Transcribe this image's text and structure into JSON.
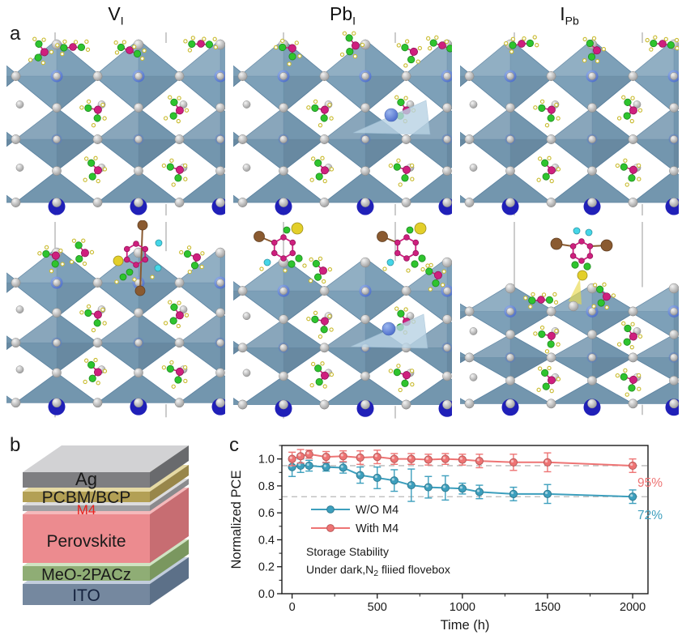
{
  "panels": {
    "a": "a",
    "b": "b",
    "c": "c"
  },
  "panel_a": {
    "column_labels": [
      {
        "main": "V",
        "sub": "I"
      },
      {
        "main": "Pb",
        "sub": "I"
      },
      {
        "main": "I",
        "sub": "Pb"
      }
    ]
  },
  "panel_b": {
    "layers": [
      {
        "name": "Ag",
        "label_color": "#1a1a1a",
        "front": "#7e7e81",
        "top": "#d2d2d4",
        "side": "#696a6d"
      },
      {
        "name": "PCBM/BCP",
        "label_color": "#1a1a1a",
        "front": "#b3a055",
        "top": "#e5d9a4",
        "side": "#98864a"
      },
      {
        "name": "M4",
        "label_color": "#e8211d",
        "front": "#a0a0a3",
        "top": "#dcdcde",
        "side": "#8a8a8d"
      },
      {
        "name": "Perovskite",
        "label_color": "#1a1a1a",
        "front": "#ec8b8f",
        "top": "#f5b9bb",
        "side": "#c76d72"
      },
      {
        "name": "MeO-2PACz",
        "label_color": "#1a1a1a",
        "front": "#8fad75",
        "top": "#d0e4c3",
        "side": "#7a975f"
      },
      {
        "name": "ITO",
        "label_color": "#16233f",
        "front": "#75889f",
        "top": "#c2cddd",
        "side": "#5c7088"
      }
    ]
  },
  "chart_data": {
    "type": "line",
    "title": "",
    "xlabel": "Time (h)",
    "ylabel": "Normalized PCE",
    "xlim": [
      -60,
      2090
    ],
    "ylim": [
      0,
      1.1
    ],
    "xticks": [
      0,
      500,
      1000,
      1500,
      2000
    ],
    "yticks": [
      0.0,
      0.2,
      0.4,
      0.6,
      0.8,
      1.0
    ],
    "grid": false,
    "legend_position": "inside-left",
    "reference_lines": [
      {
        "y": 0.95,
        "style": "dashed",
        "color": "#b8b8b8"
      },
      {
        "y": 0.72,
        "style": "dashed",
        "color": "#b8b8b8"
      }
    ],
    "x": [
      0,
      50,
      100,
      200,
      300,
      400,
      500,
      600,
      700,
      800,
      900,
      1000,
      1100,
      1300,
      1500,
      2000
    ],
    "series": [
      {
        "name": "W/O M4",
        "color": "#3d9fbd",
        "values": [
          0.94,
          0.95,
          0.95,
          0.94,
          0.935,
          0.88,
          0.86,
          0.84,
          0.805,
          0.79,
          0.785,
          0.78,
          0.755,
          0.74,
          0.74,
          0.72
        ],
        "errors": [
          0.07,
          0.05,
          0.04,
          0.03,
          0.04,
          0.06,
          0.08,
          0.08,
          0.12,
          0.08,
          0.09,
          0.04,
          0.05,
          0.05,
          0.07,
          0.05
        ]
      },
      {
        "name": "With M4",
        "color": "#ee7474",
        "values": [
          1.0,
          1.02,
          1.035,
          1.015,
          1.02,
          1.01,
          1.015,
          1.0,
          1.0,
          0.995,
          1.0,
          0.995,
          0.985,
          0.975,
          0.975,
          0.95
        ],
        "errors": [
          0.05,
          0.05,
          0.03,
          0.04,
          0.04,
          0.05,
          0.05,
          0.04,
          0.04,
          0.04,
          0.04,
          0.04,
          0.05,
          0.06,
          0.07,
          0.05
        ]
      }
    ],
    "end_labels": [
      {
        "text": "72%",
        "color": "#3d9fbd"
      },
      {
        "text": "95%",
        "color": "#ee7474"
      }
    ],
    "note": {
      "line1": "Storage Stability",
      "line2_pre": "Under dark,N",
      "line2_sub": "2",
      "line2_post": " fliied flovebox"
    }
  }
}
